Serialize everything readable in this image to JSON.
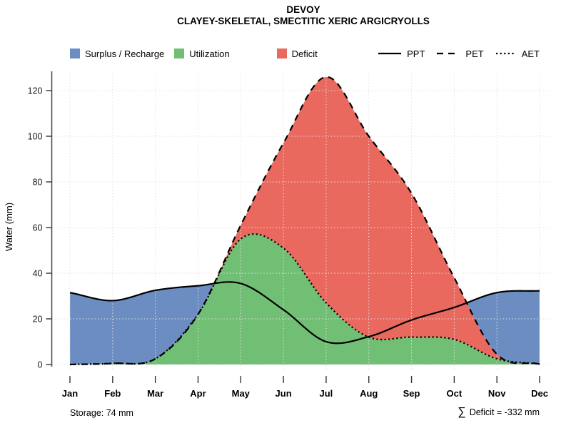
{
  "title": "DEVOY",
  "subtitle": "CLAYEY-SKELETAL, SMECTITIC XERIC ARGICRYOLLS",
  "y_axis": {
    "label": "Water (mm)",
    "ticks": [
      0,
      20,
      40,
      60,
      80,
      100,
      120
    ]
  },
  "x_axis": {
    "months": [
      "Jan",
      "Feb",
      "Mar",
      "Apr",
      "May",
      "Jun",
      "Jul",
      "Aug",
      "Sep",
      "Oct",
      "Nov",
      "Dec"
    ]
  },
  "legend": {
    "fills": [
      {
        "label": "Surplus / Recharge",
        "color": "#6B8DC1"
      },
      {
        "label": "Utilization",
        "color": "#71BF75"
      },
      {
        "label": "Deficit",
        "color": "#E9695F"
      }
    ],
    "lines": [
      {
        "label": "PPT",
        "style": "solid"
      },
      {
        "label": "PET",
        "style": "dashed"
      },
      {
        "label": "AET",
        "style": "dotted"
      }
    ]
  },
  "annotations": {
    "storage": "Storage: 74 mm",
    "deficit_sigma": "∑",
    "deficit_text": "Deficit = -332 mm"
  },
  "chart_data": {
    "type": "line",
    "title": "DEVOY",
    "subtitle": "CLAYEY-SKELETAL, SMECTITIC XERIC ARGICRYOLLS",
    "x_categories": [
      "Jan",
      "Feb",
      "Mar",
      "Apr",
      "May",
      "Jun",
      "Jul",
      "Aug",
      "Sep",
      "Oct",
      "Nov",
      "Dec"
    ],
    "ylabel": "Water (mm)",
    "ylim": [
      0,
      130
    ],
    "yticks": [
      0,
      20,
      40,
      60,
      80,
      100,
      120
    ],
    "grid": true,
    "series": [
      {
        "name": "PPT",
        "style": "solid",
        "values": [
          31.5,
          28,
          32.5,
          34.5,
          35.5,
          24,
          10,
          12.2,
          19.5,
          25,
          31.5,
          32.3
        ]
      },
      {
        "name": "PET",
        "style": "dashed",
        "values": [
          0,
          0.5,
          2.5,
          22,
          61,
          97,
          126,
          100,
          75,
          38,
          4.5,
          0.2
        ]
      },
      {
        "name": "AET",
        "style": "dotted",
        "values": [
          0,
          0.5,
          2.5,
          22,
          55,
          51,
          27,
          12,
          12,
          11,
          2.5,
          0.2
        ]
      }
    ],
    "areas": [
      {
        "name": "Surplus / Recharge",
        "color": "#6B8DC1",
        "rule": "between PET and PPT where PPT > PET"
      },
      {
        "name": "Utilization",
        "color": "#71BF75",
        "rule": "area under AET"
      },
      {
        "name": "Deficit",
        "color": "#E9695F",
        "rule": "between AET and PET where PET > AET"
      }
    ],
    "annotations": {
      "storage_mm": 74,
      "total_deficit_mm": -332
    },
    "legend_position": "top"
  }
}
